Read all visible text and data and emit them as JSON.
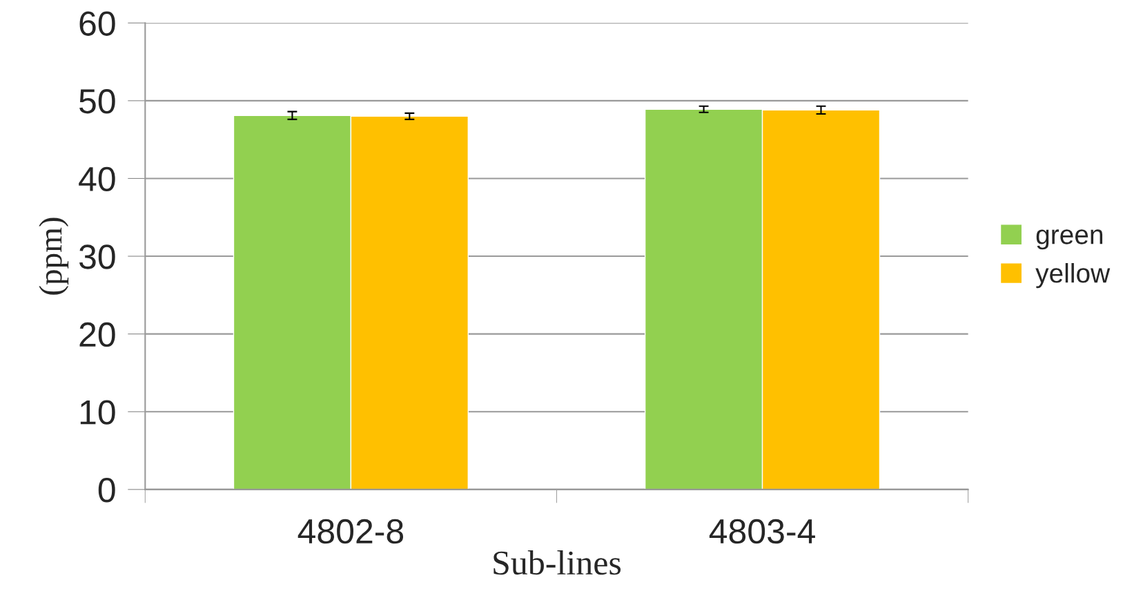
{
  "chart_data": {
    "type": "bar",
    "xlabel": "Sub-lines",
    "ylabel": "(ppm)",
    "categories": [
      "4802-8",
      "4803-4"
    ],
    "series": [
      {
        "name": "green",
        "color": "#92d050",
        "values": [
          48.1,
          48.9
        ],
        "errors": [
          0.5,
          0.4
        ]
      },
      {
        "name": "yellow",
        "color": "#ffc000",
        "values": [
          48.0,
          48.8
        ],
        "errors": [
          0.4,
          0.5
        ]
      }
    ],
    "ylim": [
      0,
      60
    ],
    "yticks": [
      0,
      10,
      20,
      30,
      40,
      50,
      60
    ],
    "grid": "y",
    "legend": "right"
  }
}
